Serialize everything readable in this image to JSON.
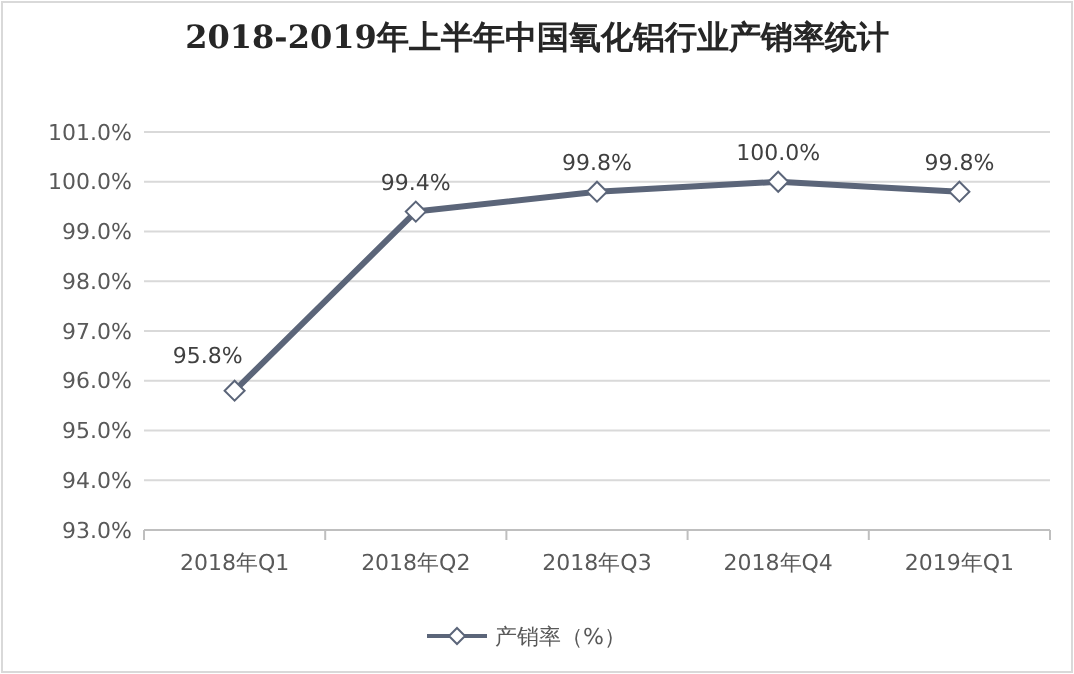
{
  "chart_data": {
    "type": "line",
    "title": "2018-2019年上半年中国氧化铝行业产销率统计",
    "categories": [
      "2018年Q1",
      "2018年Q2",
      "2018年Q3",
      "2018年Q4",
      "2019年Q1"
    ],
    "series": [
      {
        "name": "产销率（%）",
        "color": "#5b6579",
        "values": [
          95.8,
          99.4,
          99.8,
          100.0,
          99.8
        ],
        "value_labels": [
          "95.8%",
          "99.4%",
          "99.8%",
          "100.0%",
          "99.8%"
        ]
      }
    ],
    "ylim": [
      93,
      101
    ],
    "yticks": [
      {
        "value": 93,
        "label": "93.0%"
      },
      {
        "value": 94,
        "label": "94.0%"
      },
      {
        "value": 95,
        "label": "95.0%"
      },
      {
        "value": 96,
        "label": "96.0%"
      },
      {
        "value": 97,
        "label": "97.0%"
      },
      {
        "value": 98,
        "label": "98.0%"
      },
      {
        "value": 99,
        "label": "99.0%"
      },
      {
        "value": 100,
        "label": "100.0%"
      },
      {
        "value": 101,
        "label": "101.0%"
      }
    ],
    "grid": "y",
    "legend": "bottom",
    "marker": "diamond",
    "line_style": "solid"
  }
}
